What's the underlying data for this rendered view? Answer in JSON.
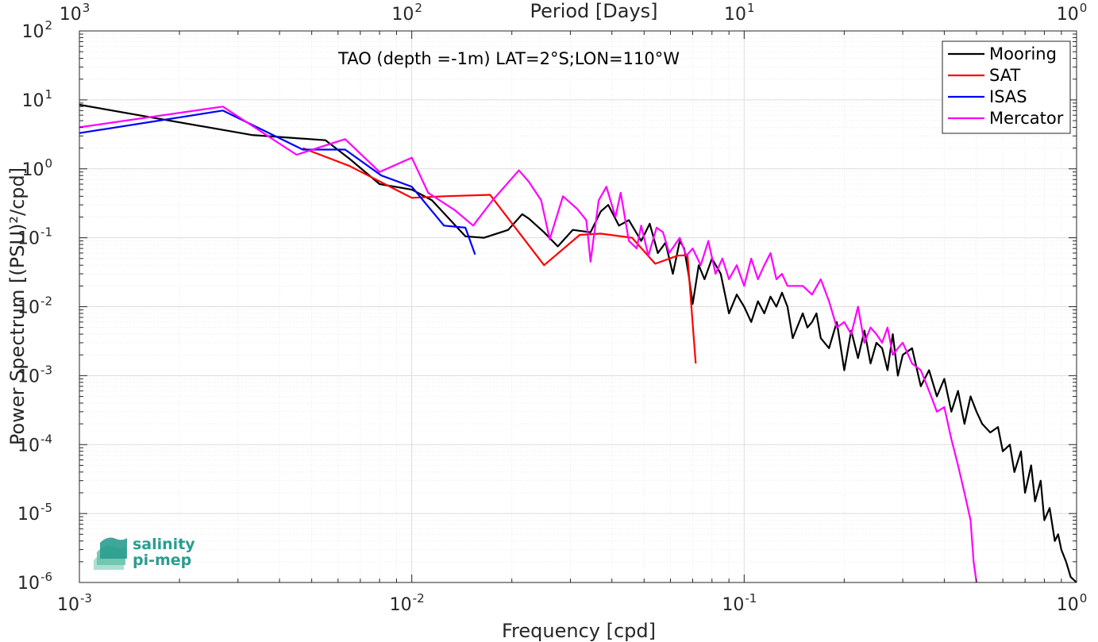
{
  "chart_data": {
    "type": "line",
    "title": "TAO (depth =-1m) LAT=2°S;LON=110°W",
    "xlabel": "Frequency [cpd]",
    "ylabel": "Power Spectrum [(PSU)²/cpd]",
    "top_xlabel": "Period [Days]",
    "x_scale": "log",
    "y_scale": "log",
    "xlim": [
      0.001,
      1
    ],
    "ylim": [
      1e-06,
      100
    ],
    "x_ticks": [
      {
        "value": 0.001,
        "base": "10",
        "exp": "-3"
      },
      {
        "value": 0.01,
        "base": "10",
        "exp": "-2"
      },
      {
        "value": 0.1,
        "base": "10",
        "exp": "-1"
      },
      {
        "value": 1,
        "base": "10",
        "exp": "0"
      }
    ],
    "top_x_ticks": [
      {
        "value": 0.001,
        "base": "10",
        "exp": "3"
      },
      {
        "value": 0.01,
        "base": "10",
        "exp": "2"
      },
      {
        "value": 0.1,
        "base": "10",
        "exp": "1"
      },
      {
        "value": 1,
        "base": "10",
        "exp": "0"
      }
    ],
    "y_ticks": [
      {
        "value": 1e-06,
        "base": "10",
        "exp": "-6"
      },
      {
        "value": 1e-05,
        "base": "10",
        "exp": "-5"
      },
      {
        "value": 0.0001,
        "base": "10",
        "exp": "-4"
      },
      {
        "value": 0.001,
        "base": "10",
        "exp": "-3"
      },
      {
        "value": 0.01,
        "base": "10",
        "exp": "-2"
      },
      {
        "value": 0.1,
        "base": "10",
        "exp": "-1"
      },
      {
        "value": 1,
        "base": "10",
        "exp": "0"
      },
      {
        "value": 10,
        "base": "10",
        "exp": "1"
      },
      {
        "value": 100,
        "base": "10",
        "exp": "2"
      }
    ],
    "grid": true,
    "legend_position": "top-right",
    "series": [
      {
        "name": "Mooring",
        "color": "#000000",
        "points": [
          [
            0.001,
            8.5
          ],
          [
            0.0033,
            3.1
          ],
          [
            0.0055,
            2.6
          ],
          [
            0.0065,
            1.4
          ],
          [
            0.008,
            0.6
          ],
          [
            0.01,
            0.5
          ],
          [
            0.0115,
            0.35
          ],
          [
            0.0145,
            0.105
          ],
          [
            0.0165,
            0.1
          ],
          [
            0.0195,
            0.13
          ],
          [
            0.0215,
            0.22
          ],
          [
            0.0225,
            0.19
          ],
          [
            0.025,
            0.12
          ],
          [
            0.0275,
            0.075
          ],
          [
            0.0305,
            0.13
          ],
          [
            0.0345,
            0.12
          ],
          [
            0.037,
            0.24
          ],
          [
            0.039,
            0.3
          ],
          [
            0.042,
            0.15
          ],
          [
            0.045,
            0.18
          ],
          [
            0.049,
            0.09
          ],
          [
            0.052,
            0.16
          ],
          [
            0.055,
            0.06
          ],
          [
            0.058,
            0.085
          ],
          [
            0.061,
            0.03
          ],
          [
            0.064,
            0.09
          ],
          [
            0.066,
            0.07
          ],
          [
            0.068,
            0.03
          ],
          [
            0.07,
            0.011
          ],
          [
            0.073,
            0.04
          ],
          [
            0.076,
            0.025
          ],
          [
            0.08,
            0.05
          ],
          [
            0.085,
            0.03
          ],
          [
            0.09,
            0.008
          ],
          [
            0.095,
            0.015
          ],
          [
            0.1,
            0.01
          ],
          [
            0.105,
            0.006
          ],
          [
            0.11,
            0.012
          ],
          [
            0.115,
            0.008
          ],
          [
            0.12,
            0.014
          ],
          [
            0.125,
            0.01
          ],
          [
            0.13,
            0.016
          ],
          [
            0.135,
            0.01
          ],
          [
            0.14,
            0.0035
          ],
          [
            0.15,
            0.008
          ],
          [
            0.155,
            0.005
          ],
          [
            0.16,
            0.006
          ],
          [
            0.165,
            0.008
          ],
          [
            0.17,
            0.0035
          ],
          [
            0.18,
            0.0025
          ],
          [
            0.19,
            0.006
          ],
          [
            0.2,
            0.0012
          ],
          [
            0.21,
            0.0045
          ],
          [
            0.22,
            0.0018
          ],
          [
            0.23,
            0.0045
          ],
          [
            0.24,
            0.0015
          ],
          [
            0.25,
            0.003
          ],
          [
            0.26,
            0.0025
          ],
          [
            0.27,
            0.0012
          ],
          [
            0.28,
            0.004
          ],
          [
            0.29,
            0.001
          ],
          [
            0.3,
            0.002
          ],
          [
            0.32,
            0.0025
          ],
          [
            0.34,
            0.0007
          ],
          [
            0.36,
            0.0012
          ],
          [
            0.38,
            0.0005
          ],
          [
            0.4,
            0.0009
          ],
          [
            0.42,
            0.0003
          ],
          [
            0.44,
            0.0006
          ],
          [
            0.46,
            0.0002
          ],
          [
            0.48,
            0.0005
          ],
          [
            0.5,
            0.0003
          ],
          [
            0.52,
            0.0002
          ],
          [
            0.55,
            0.00015
          ],
          [
            0.58,
            0.00018
          ],
          [
            0.6,
            8e-05
          ],
          [
            0.63,
            0.0001
          ],
          [
            0.65,
            4e-05
          ],
          [
            0.68,
            8e-05
          ],
          [
            0.7,
            2e-05
          ],
          [
            0.73,
            5e-05
          ],
          [
            0.75,
            1.5e-05
          ],
          [
            0.78,
            3e-05
          ],
          [
            0.8,
            8e-06
          ],
          [
            0.83,
            1.2e-05
          ],
          [
            0.86,
            4e-06
          ],
          [
            0.88,
            5e-06
          ],
          [
            0.9,
            3e-06
          ],
          [
            0.93,
            2e-06
          ],
          [
            0.96,
            1.2e-06
          ],
          [
            1.0,
            1e-06
          ]
        ]
      },
      {
        "name": "SAT",
        "color": "#ff0000",
        "points": [
          [
            0.0047,
            2.0
          ],
          [
            0.0065,
            1.1
          ],
          [
            0.01,
            0.38
          ],
          [
            0.0125,
            0.4
          ],
          [
            0.0172,
            0.42
          ],
          [
            0.025,
            0.04
          ],
          [
            0.032,
            0.11
          ],
          [
            0.037,
            0.115
          ],
          [
            0.046,
            0.1
          ],
          [
            0.054,
            0.042
          ],
          [
            0.063,
            0.055
          ],
          [
            0.0675,
            0.056
          ],
          [
            0.0715,
            0.0015
          ]
        ]
      },
      {
        "name": "ISAS",
        "color": "#0000ff",
        "points": [
          [
            0.001,
            3.3
          ],
          [
            0.0027,
            7.0
          ],
          [
            0.0047,
            1.9
          ],
          [
            0.0063,
            1.9
          ],
          [
            0.0081,
            0.8
          ],
          [
            0.01,
            0.55
          ],
          [
            0.0125,
            0.15
          ],
          [
            0.0145,
            0.14
          ],
          [
            0.0155,
            0.057
          ]
        ]
      },
      {
        "name": "Mercator",
        "color": "#ff00ff",
        "points": [
          [
            0.001,
            4.0
          ],
          [
            0.0027,
            8.0
          ],
          [
            0.0045,
            1.6
          ],
          [
            0.0063,
            2.7
          ],
          [
            0.008,
            0.9
          ],
          [
            0.01,
            1.45
          ],
          [
            0.0112,
            0.45
          ],
          [
            0.0135,
            0.25
          ],
          [
            0.0153,
            0.15
          ],
          [
            0.0175,
            0.35
          ],
          [
            0.021,
            0.95
          ],
          [
            0.0225,
            0.65
          ],
          [
            0.0245,
            0.35
          ],
          [
            0.026,
            0.095
          ],
          [
            0.0285,
            0.4
          ],
          [
            0.0315,
            0.26
          ],
          [
            0.0335,
            0.18
          ],
          [
            0.0345,
            0.045
          ],
          [
            0.0365,
            0.35
          ],
          [
            0.0385,
            0.55
          ],
          [
            0.041,
            0.2
          ],
          [
            0.0425,
            0.45
          ],
          [
            0.045,
            0.09
          ],
          [
            0.0475,
            0.07
          ],
          [
            0.049,
            0.15
          ],
          [
            0.0515,
            0.055
          ],
          [
            0.0545,
            0.14
          ],
          [
            0.057,
            0.12
          ],
          [
            0.0595,
            0.06
          ],
          [
            0.064,
            0.1
          ],
          [
            0.067,
            0.055
          ],
          [
            0.07,
            0.07
          ],
          [
            0.074,
            0.04
          ],
          [
            0.078,
            0.09
          ],
          [
            0.082,
            0.03
          ],
          [
            0.086,
            0.05
          ],
          [
            0.09,
            0.025
          ],
          [
            0.095,
            0.04
          ],
          [
            0.1,
            0.02
          ],
          [
            0.105,
            0.05
          ],
          [
            0.11,
            0.025
          ],
          [
            0.115,
            0.04
          ],
          [
            0.12,
            0.06
          ],
          [
            0.125,
            0.025
          ],
          [
            0.13,
            0.03
          ],
          [
            0.135,
            0.02
          ],
          [
            0.14,
            0.02
          ],
          [
            0.15,
            0.02
          ],
          [
            0.16,
            0.015
          ],
          [
            0.17,
            0.025
          ],
          [
            0.18,
            0.012
          ],
          [
            0.19,
            0.005
          ],
          [
            0.2,
            0.006
          ],
          [
            0.21,
            0.004
          ],
          [
            0.22,
            0.01
          ],
          [
            0.23,
            0.003
          ],
          [
            0.24,
            0.005
          ],
          [
            0.25,
            0.004
          ],
          [
            0.26,
            0.003
          ],
          [
            0.27,
            0.005
          ],
          [
            0.28,
            0.002
          ],
          [
            0.29,
            0.0025
          ],
          [
            0.3,
            0.003
          ],
          [
            0.32,
            0.0015
          ],
          [
            0.34,
            0.0012
          ],
          [
            0.36,
            0.0006
          ],
          [
            0.38,
            0.0003
          ],
          [
            0.4,
            0.00035
          ],
          [
            0.42,
            0.00012
          ],
          [
            0.44,
            5e-05
          ],
          [
            0.46,
            2e-05
          ],
          [
            0.48,
            8e-06
          ],
          [
            0.49,
            2e-06
          ],
          [
            0.5,
            1e-06
          ]
        ]
      }
    ]
  },
  "logo": {
    "line1": "salinity",
    "line2": "pi-mep"
  }
}
